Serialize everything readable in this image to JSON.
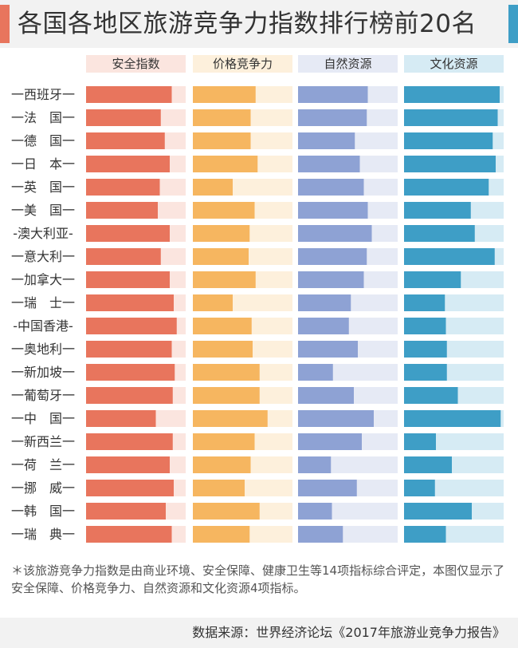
{
  "title": "各国各地区旅游竞争力指数排行榜前20名",
  "chart_data": {
    "type": "bar",
    "categories": [
      "一西班牙一",
      "一法　国一",
      "一德　国一",
      "一日　本一",
      "一英　国一",
      "一美　国一",
      "-澳大利亚-",
      "一意大利一",
      "一加拿大一",
      "一瑞　士一",
      "-中国香港-",
      "一奥地利一",
      "一新加坡一",
      "一葡萄牙一",
      "一中　国一",
      "一新西兰一",
      "一荷　兰一",
      "一挪　威一",
      "一韩　国一",
      "一瑞　典一"
    ],
    "series": [
      {
        "name": "安全指数",
        "color": "#e8755d",
        "track": "#fbe5df",
        "values": [
          0.86,
          0.75,
          0.79,
          0.84,
          0.74,
          0.72,
          0.84,
          0.75,
          0.84,
          0.88,
          0.91,
          0.86,
          0.89,
          0.87,
          0.7,
          0.87,
          0.84,
          0.88,
          0.8,
          0.86
        ]
      },
      {
        "name": "价格竞争力",
        "color": "#f6b660",
        "track": "#fdf0dc",
        "values": [
          0.63,
          0.58,
          0.58,
          0.65,
          0.4,
          0.62,
          0.57,
          0.56,
          0.63,
          0.4,
          0.59,
          0.6,
          0.67,
          0.67,
          0.75,
          0.62,
          0.58,
          0.52,
          0.67,
          0.57
        ]
      },
      {
        "name": "自然资源",
        "color": "#8ea2d4",
        "track": "#e6eaf5",
        "values": [
          0.7,
          0.69,
          0.57,
          0.62,
          0.66,
          0.7,
          0.74,
          0.69,
          0.66,
          0.53,
          0.51,
          0.6,
          0.35,
          0.56,
          0.76,
          0.64,
          0.33,
          0.59,
          0.34,
          0.45
        ]
      },
      {
        "name": "文化资源",
        "color": "#3e9ec6",
        "track": "#d6ebf4",
        "values": [
          0.96,
          0.94,
          0.89,
          0.92,
          0.85,
          0.67,
          0.71,
          0.91,
          0.57,
          0.41,
          0.42,
          0.43,
          0.43,
          0.54,
          0.97,
          0.32,
          0.48,
          0.31,
          0.68,
          0.42
        ]
      }
    ]
  },
  "note": "＊该旅游竞争力指数是由商业环境、安全保障、健康卫生等14项指标综合评定，本图仅显示了安全保障、价格竞争力、自然资源和文化资源4项指标。",
  "source": "数据来源：世界经济论坛《2017年旅游业竞争力报告》"
}
